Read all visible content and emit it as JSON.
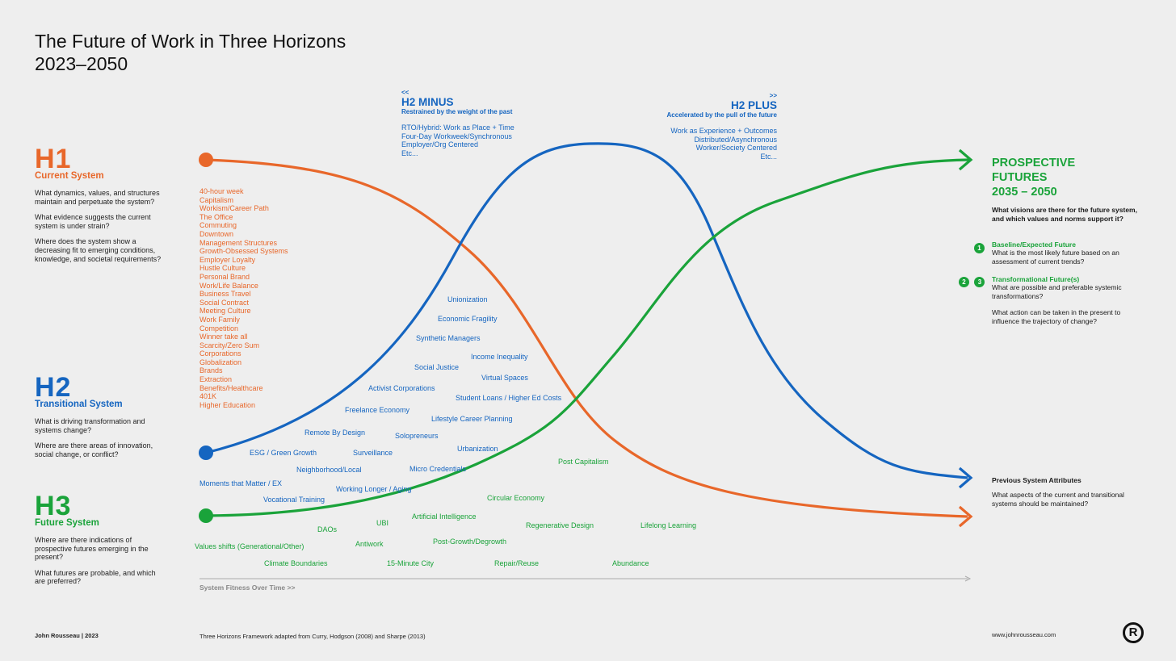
{
  "title": {
    "line1": "The Future of Work in Three Horizons",
    "line2": "2023–2050"
  },
  "h1": {
    "label": "H1",
    "subtitle": "Current System",
    "questions": [
      "What dynamics, values, and structures maintain and perpetuate the system?",
      "What evidence suggests the current system is under strain?",
      "Where does the system show a decreasing fit to emerging conditions, knowledge, and societal requirements?"
    ],
    "attributes": [
      "40-hour week",
      "Capitalism",
      "Workism/Career Path",
      "The Office",
      "Commuting",
      "Downtown",
      "Management Structures",
      "Growth-Obsessed Systems",
      "Employer Loyalty",
      "Hustle Culture",
      "Personal Brand",
      "Work/Life Balance",
      "Business Travel",
      "Social Contract",
      "Meeting Culture",
      "Work Family",
      "Competition",
      "Winner take all",
      "Scarcity/Zero Sum",
      "Corporations",
      "Globalization",
      "Brands",
      "Extraction",
      "Benefits/Healthcare",
      "401K",
      "Higher Education"
    ]
  },
  "h2": {
    "label": "H2",
    "subtitle": "Transitional System",
    "questions": [
      "What is driving transformation and systems change?",
      "Where are there areas of innovation, social change, or conflict?"
    ],
    "terms": [
      "Unionization",
      "Economic Fragility",
      "Synthetic Managers",
      "Income Inequality",
      "Social Justice",
      "Virtual Spaces",
      "Activist Corporations",
      "Student Loans / Higher Ed Costs",
      "Freelance Economy",
      "Lifestyle Career Planning",
      "Remote By Design",
      "Solopreneurs",
      "ESG / Green Growth",
      "Surveillance",
      "Urbanization",
      "Neighborhood/Local",
      "Micro Credentials",
      "Moments that Matter  / EX",
      "Working Longer / Aging",
      "Vocational Training"
    ]
  },
  "h3": {
    "label": "H3",
    "subtitle": "Future System",
    "questions": [
      "Where are there indications of prospective futures emerging in the present?",
      "What futures are probable, and which are preferred?"
    ],
    "terms": [
      "Post Capitalism",
      "Circular Economy",
      "Artificial Intelligence",
      "UBI",
      "DAOs",
      "Regenerative Design",
      "Lifelong Learning",
      "Values shifts (Generational/Other)",
      "Antiwork",
      "Post-Growth/Degrowth",
      "Climate Boundaries",
      "15-Minute City",
      "Repair/Reuse",
      "Abundance"
    ]
  },
  "h2minus": {
    "arrow": "<<",
    "title": "H2 MINUS",
    "subtitle": "Restrained by the weight of the past",
    "items": [
      "RTO/Hybrid: Work as Place + Time",
      "Four-Day Workweek/Synchronous",
      "Employer/Org Centered",
      "Etc..."
    ]
  },
  "h2plus": {
    "arrow": ">>",
    "title": "H2 PLUS",
    "subtitle": "Accelerated by the pull of the future",
    "items": [
      "Work as Experience + Outcomes",
      "Distributed/Asynchronous",
      "Worker/Society Centered",
      "Etc..."
    ]
  },
  "prospective": {
    "title1": "PROSPECTIVE",
    "title2": "FUTURES",
    "title3": "2035 – 2050",
    "question": "What visions are there for the future system, and which values and norms support it?",
    "baseline_num": "1",
    "baseline_title": "Baseline/Expected Future",
    "baseline_text": "What is the most likely future based on an assessment of current trends?",
    "transform_num1": "2",
    "transform_num2": "3",
    "transform_title": "Transformational Future(s)",
    "transform_text": "What are possible and preferable systemic transformations?",
    "action_text": "What action can be taken in the present to influence the trajectory of change?"
  },
  "previous": {
    "title": "Previous System Attributes",
    "text": "What aspects of the current and transitional systems should be maintained?"
  },
  "axis_label": "System Fitness Over Time >>",
  "footer": {
    "author": "John Rousseau | 2023",
    "credit": "Three Horizons Framework adapted from Curry, Hodgson (2008) and Sharpe (2013)",
    "url": "www.johnrousseau.com",
    "logo_letter": "R"
  },
  "colors": {
    "h1": "#e8672a",
    "h2": "#1565c0",
    "h3": "#1aa33a",
    "background": "#eeeeee"
  }
}
